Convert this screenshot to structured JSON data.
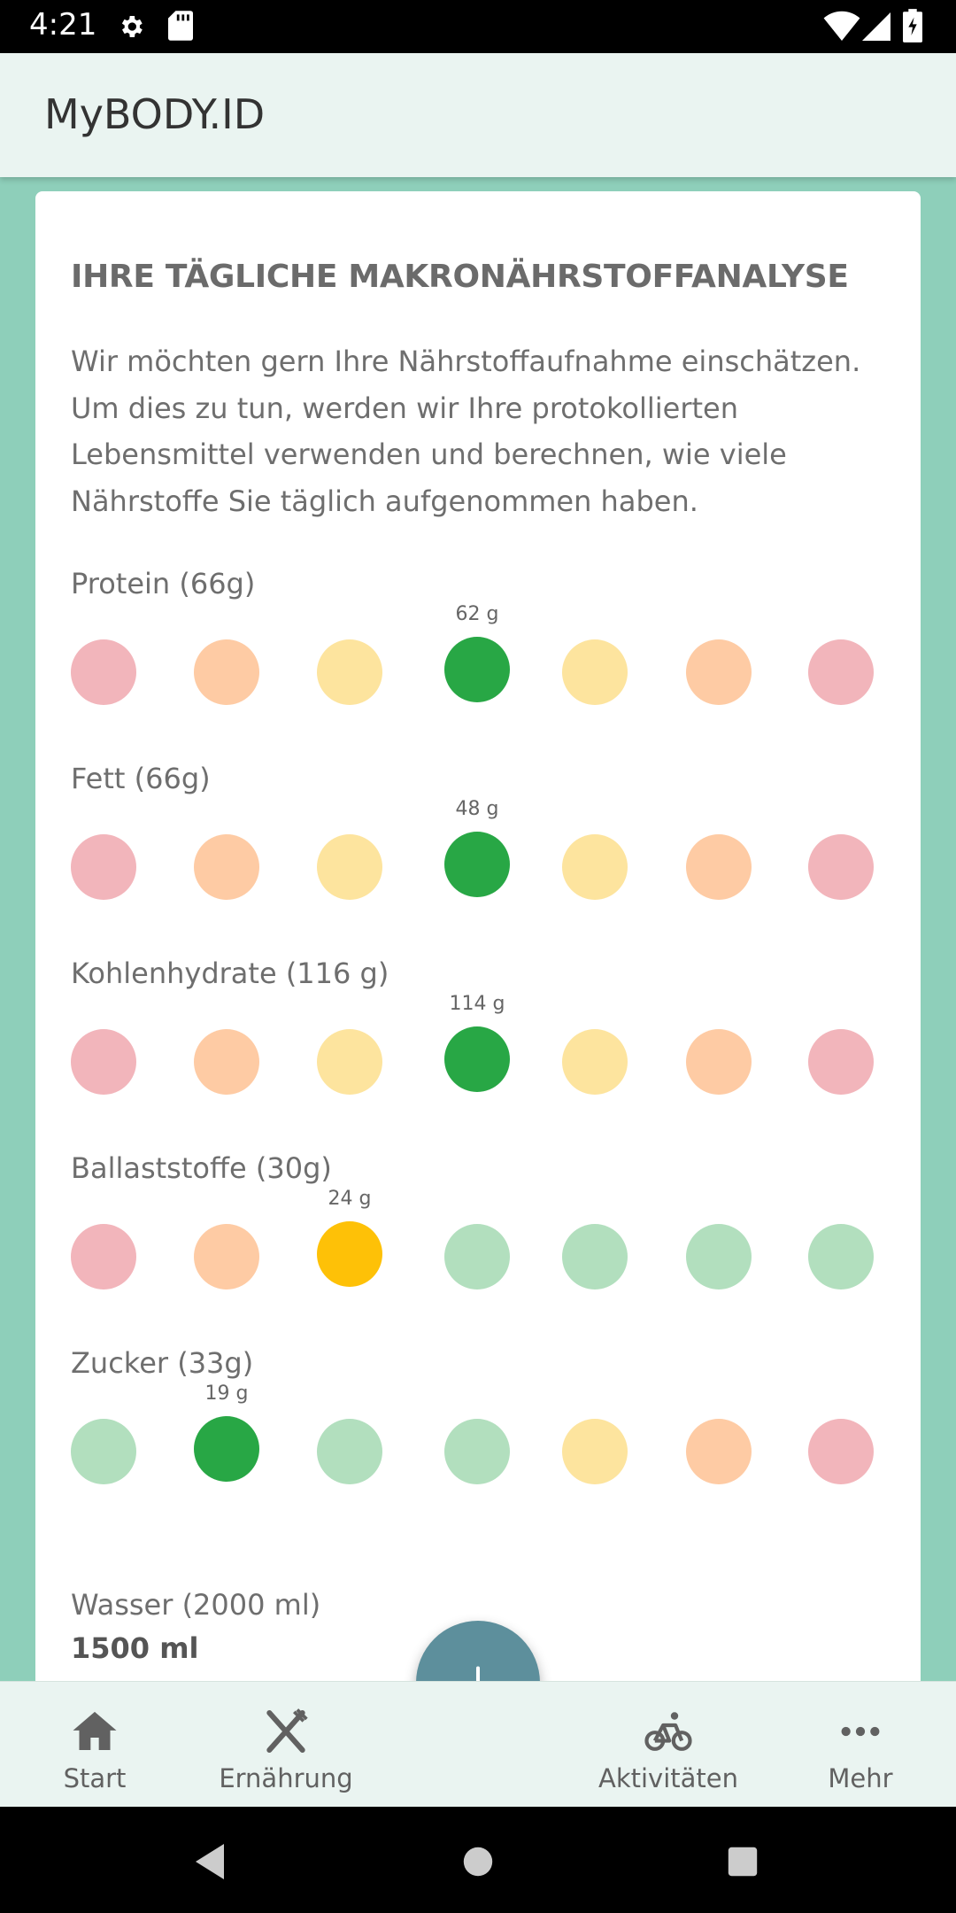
{
  "status_bar": {
    "time": "4:21"
  },
  "app_bar": {
    "title": "MyBODY.ID"
  },
  "card": {
    "heading": "IHRE TÄGLICHE MAKRONÄHRSTOFFANALYSE",
    "intro": "Wir möchten gern Ihre Nährstoffaufnahme einschätzen. Um dies zu tun, werden wir Ihre protokollierten Lebensmittel verwenden und berechnen, wie viele Nährstoffe Sie täglich aufgenommen haben."
  },
  "nutrients": [
    {
      "label": "Protein (66g)",
      "value": "62 g",
      "active_index": 3,
      "scale": [
        "red",
        "orange",
        "yellow",
        "green",
        "yellow",
        "orange",
        "red"
      ]
    },
    {
      "label": "Fett (66g)",
      "value": "48 g",
      "active_index": 3,
      "scale": [
        "red",
        "orange",
        "yellow",
        "green",
        "yellow",
        "orange",
        "red"
      ]
    },
    {
      "label": "Kohlenhydrate (116 g)",
      "value": "114 g",
      "active_index": 3,
      "scale": [
        "red",
        "orange",
        "yellow",
        "green",
        "yellow",
        "orange",
        "red"
      ]
    },
    {
      "label": "Ballaststoffe (30g)",
      "value": "24 g",
      "active_index": 2,
      "scale": [
        "red",
        "orange",
        "yellow",
        "green",
        "green",
        "green",
        "green"
      ]
    },
    {
      "label": "Zucker (33g)",
      "value": "19 g",
      "active_index": 1,
      "scale": [
        "green",
        "green",
        "green",
        "green",
        "yellow",
        "orange",
        "red"
      ]
    }
  ],
  "water": {
    "label": "Wasser (2000 ml)",
    "value": "1500 ml"
  },
  "colors": {
    "light": {
      "red": "#f2b5bb",
      "orange": "#fecba4",
      "yellow": "#fde49e",
      "green": "#b2dfbe"
    },
    "active": {
      "green": "#28a745",
      "yellow": "#fec107"
    }
  },
  "bottom_nav": {
    "items": [
      {
        "label": "Start",
        "icon": "home-icon"
      },
      {
        "label": "Ernährung",
        "icon": "fork-knife-icon"
      },
      {
        "label": "Aktivitäten",
        "icon": "bicycle-icon"
      },
      {
        "label": "Mehr",
        "icon": "more-dots-icon"
      }
    ],
    "fab_icon": "plus-icon"
  }
}
